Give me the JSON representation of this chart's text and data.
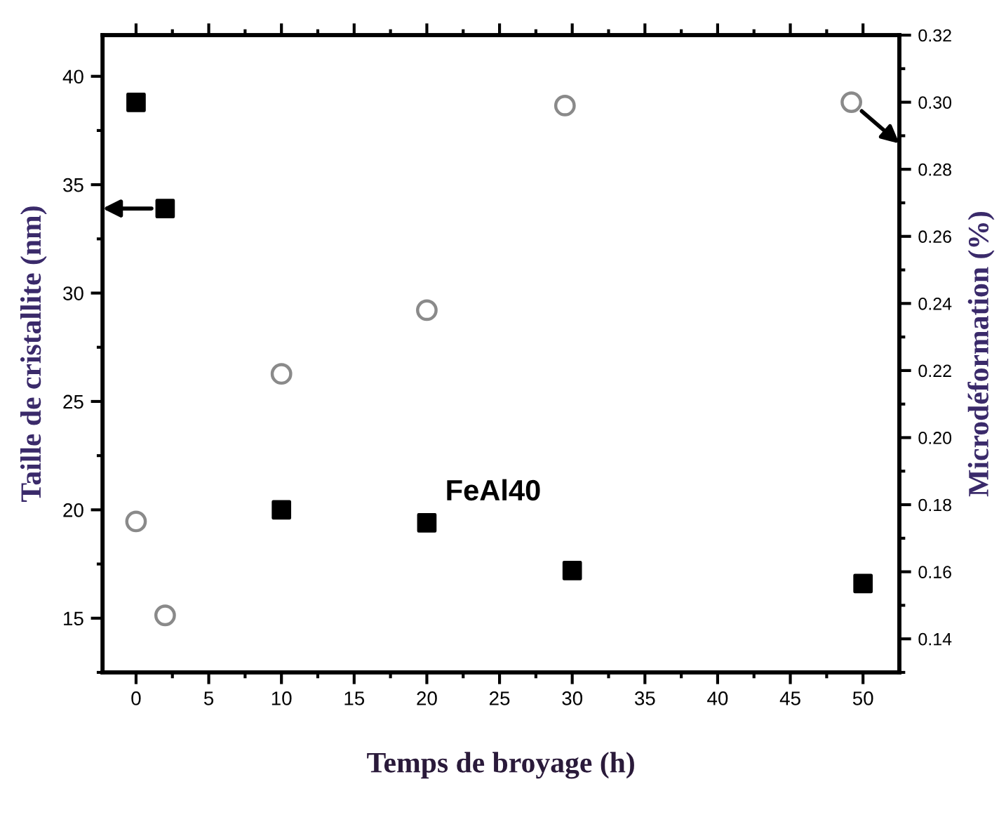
{
  "chart_data": {
    "type": "scatter",
    "xlabel": "Temps de broyage (h)",
    "ylabel": "Taille de cristallite (nm)",
    "y2label": "Microdéformation (%)",
    "annotations": [
      "FeAl40"
    ],
    "xlim": [
      -2.3,
      52.5
    ],
    "xticks": [
      0,
      5,
      10,
      15,
      20,
      25,
      30,
      35,
      40,
      45,
      50
    ],
    "ylim": [
      12.5,
      41.9
    ],
    "yticks": [
      15,
      20,
      25,
      30,
      35,
      40
    ],
    "y2lim": [
      0.13,
      0.32
    ],
    "y2ticks": [
      0.14,
      0.16,
      0.18,
      {
        "value": 0.2,
        "label": "0.20"
      },
      0.22,
      0.24,
      0.26,
      0.28,
      {
        "value": 0.3,
        "label": "0.30"
      },
      0.32
    ],
    "grid": false,
    "series": [
      {
        "color": "#000000",
        "marker": "square",
        "x": [
          0,
          2,
          10,
          20,
          30,
          50
        ],
        "values": [
          38.8,
          33.9,
          20.0,
          19.4,
          17.2,
          16.6
        ]
      },
      {
        "color": "#8a8a8a",
        "marker": "circle",
        "axis": "y2",
        "x": [
          0,
          2,
          10,
          20,
          29.5,
          49.2
        ],
        "values": [
          0.175,
          0.147,
          0.219,
          0.238,
          0.299,
          0.3
        ]
      }
    ]
  }
}
